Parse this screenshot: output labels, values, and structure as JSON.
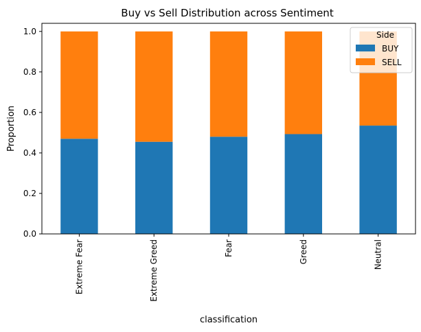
{
  "chart_data": {
    "type": "bar",
    "stacked": true,
    "title": "Buy vs Sell Distribution across Sentiment",
    "xlabel": "classification",
    "ylabel": "Proportion",
    "categories": [
      "Extreme Fear",
      "Extreme Greed",
      "Fear",
      "Greed",
      "Neutral"
    ],
    "series": [
      {
        "name": "BUY",
        "values": [
          0.47,
          0.455,
          0.48,
          0.493,
          0.535
        ],
        "color": "#1f77b4"
      },
      {
        "name": "SELL",
        "values": [
          0.53,
          0.545,
          0.52,
          0.507,
          0.465
        ],
        "color": "#ff7f0e"
      }
    ],
    "ylim": [
      0,
      1.04
    ],
    "yticks": [
      "0.0",
      "0.2",
      "0.4",
      "0.6",
      "0.8",
      "1.0"
    ],
    "grid": false,
    "legend": {
      "title": "Side",
      "position": "top-right"
    }
  }
}
